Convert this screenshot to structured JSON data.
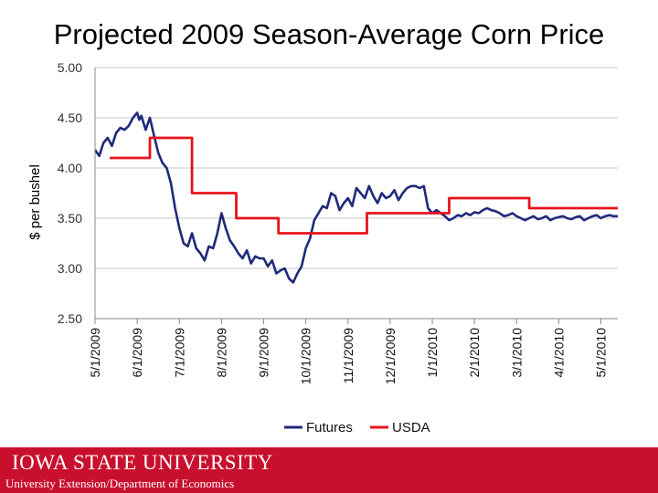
{
  "slide": {
    "title": "Projected 2009 Season-Average Corn Price"
  },
  "footer": {
    "brand": "IOWA STATE UNIVERSITY",
    "subtitle": "University Extension/Department of Economics",
    "color": "#c8102e"
  },
  "chart_data": {
    "type": "line",
    "title": "",
    "xlabel": "",
    "ylabel": "$ per bushel",
    "ylim": [
      2.5,
      5.0
    ],
    "yticks": [
      "5.00",
      "4.50",
      "4.00",
      "3.50",
      "3.00",
      "2.50"
    ],
    "xlim": [
      0,
      12.4
    ],
    "xticks": [
      "5/1/2009",
      "6/1/2009",
      "7/1/2009",
      "8/1/2009",
      "9/1/2009",
      "10/1/2009",
      "11/1/2009",
      "12/1/2009",
      "1/1/2010",
      "2/1/2010",
      "3/1/2010",
      "4/1/2010",
      "5/1/2010"
    ],
    "grid": true,
    "legend": "bottom",
    "series": [
      {
        "name": "Futures",
        "color": "#1f2a7a",
        "x": [
          0,
          0.1,
          0.2,
          0.3,
          0.4,
          0.5,
          0.6,
          0.7,
          0.8,
          0.9,
          1.0,
          1.05,
          1.1,
          1.15,
          1.2,
          1.3,
          1.4,
          1.5,
          1.6,
          1.7,
          1.8,
          1.9,
          2.0,
          2.1,
          2.2,
          2.3,
          2.4,
          2.5,
          2.6,
          2.7,
          2.8,
          2.9,
          3.0,
          3.1,
          3.2,
          3.3,
          3.4,
          3.5,
          3.6,
          3.7,
          3.8,
          3.9,
          4.0,
          4.1,
          4.2,
          4.3,
          4.4,
          4.5,
          4.6,
          4.7,
          4.8,
          4.9,
          5.0,
          5.1,
          5.2,
          5.3,
          5.4,
          5.5,
          5.6,
          5.7,
          5.8,
          5.9,
          6.0,
          6.1,
          6.2,
          6.3,
          6.4,
          6.5,
          6.6,
          6.7,
          6.8,
          6.9,
          7.0,
          7.1,
          7.2,
          7.3,
          7.4,
          7.5,
          7.6,
          7.7,
          7.8,
          7.9,
          8.0,
          8.1,
          8.2,
          8.3,
          8.4,
          8.5,
          8.6,
          8.7,
          8.8,
          8.9,
          9.0,
          9.1,
          9.2,
          9.3,
          9.4,
          9.5,
          9.6,
          9.7,
          9.8,
          9.9,
          10.0,
          10.1,
          10.2,
          10.3,
          10.4,
          10.5,
          10.6,
          10.7,
          10.8,
          10.9,
          11.0,
          11.1,
          11.2,
          11.3,
          11.4,
          11.5,
          11.6,
          11.7,
          11.8,
          11.9,
          12.0,
          12.1,
          12.2,
          12.3,
          12.4
        ],
        "values": [
          4.18,
          4.12,
          4.25,
          4.3,
          4.22,
          4.35,
          4.4,
          4.38,
          4.42,
          4.5,
          4.55,
          4.48,
          4.52,
          4.45,
          4.38,
          4.5,
          4.32,
          4.15,
          4.05,
          4.0,
          3.85,
          3.6,
          3.4,
          3.25,
          3.22,
          3.35,
          3.2,
          3.15,
          3.08,
          3.22,
          3.2,
          3.35,
          3.55,
          3.4,
          3.28,
          3.22,
          3.15,
          3.1,
          3.18,
          3.05,
          3.12,
          3.1,
          3.1,
          3.02,
          3.08,
          2.95,
          2.98,
          3.0,
          2.9,
          2.86,
          2.95,
          3.02,
          3.2,
          3.3,
          3.48,
          3.55,
          3.62,
          3.6,
          3.75,
          3.72,
          3.58,
          3.65,
          3.7,
          3.62,
          3.8,
          3.75,
          3.7,
          3.82,
          3.72,
          3.65,
          3.75,
          3.7,
          3.72,
          3.78,
          3.68,
          3.75,
          3.8,
          3.82,
          3.82,
          3.8,
          3.82,
          3.6,
          3.55,
          3.58,
          3.55,
          3.52,
          3.48,
          3.5,
          3.53,
          3.52,
          3.55,
          3.53,
          3.56,
          3.55,
          3.58,
          3.6,
          3.58,
          3.57,
          3.55,
          3.52,
          3.53,
          3.55,
          3.52,
          3.5,
          3.48,
          3.5,
          3.52,
          3.49,
          3.5,
          3.52,
          3.48,
          3.5,
          3.51,
          3.52,
          3.5,
          3.49,
          3.51,
          3.52,
          3.48,
          3.5,
          3.52,
          3.53,
          3.5,
          3.52,
          3.53,
          3.52,
          3.52
        ]
      },
      {
        "name": "USDA",
        "color": "#e8131b",
        "x": [
          0.35,
          1.3,
          1.3,
          2.3,
          2.3,
          3.35,
          3.35,
          4.35,
          4.35,
          5.35,
          5.35,
          6.45,
          6.45,
          8.4,
          8.4,
          10.3,
          10.3,
          12.4
        ],
        "values": [
          4.1,
          4.1,
          4.3,
          4.3,
          3.75,
          3.75,
          3.5,
          3.5,
          3.35,
          3.35,
          3.35,
          3.35,
          3.55,
          3.55,
          3.7,
          3.7,
          3.6,
          3.6
        ]
      }
    ]
  }
}
